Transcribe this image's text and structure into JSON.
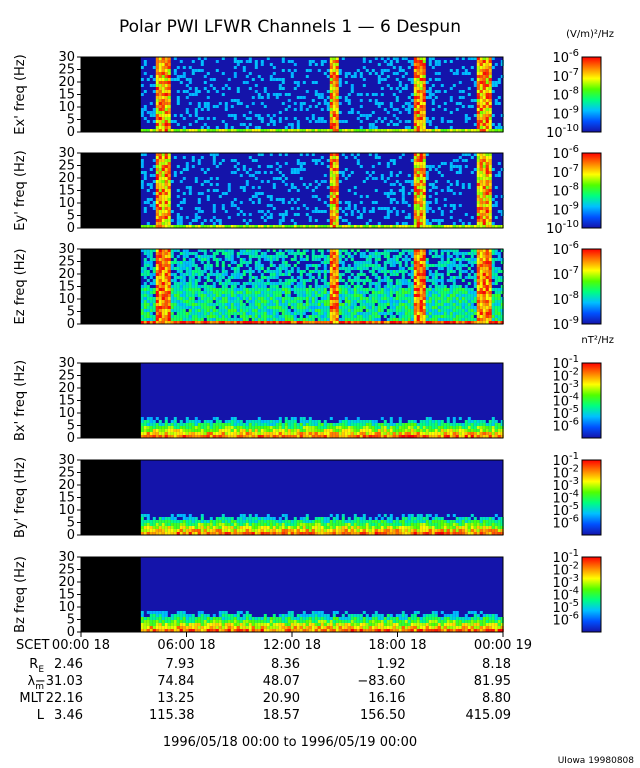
{
  "title": "Polar PWI LFWR Channels 1 — 6 Despun",
  "date_range": "1996/05/18 00:00 to 1996/05/19 00:00",
  "credit": "UIowa 19980808",
  "colors": {
    "background": "#ffffff",
    "no_data": "#000000",
    "colormap": [
      "#1414aa",
      "#0050ff",
      "#00c0ff",
      "#00ff80",
      "#50ff00",
      "#ffff00",
      "#ff8000",
      "#ff0000"
    ]
  },
  "chart_data": {
    "type": "heatmap",
    "instrument": "Polar PWI LFWR",
    "time_axis": {
      "label": "SCET",
      "range_hours": [
        0,
        24
      ],
      "no_data_until_hour": 3.4,
      "tick_hours": [
        0,
        6,
        12,
        18,
        24
      ],
      "tick_labels": [
        "00:00 18",
        "06:00 18",
        "12:00 18",
        "18:00 18",
        "00:00 19"
      ]
    },
    "freq_axis": {
      "range_hz": [
        0,
        30
      ],
      "tick_values": [
        0,
        5,
        10,
        15,
        20,
        25,
        30
      ],
      "tick_labels": [
        "0",
        "5",
        "10",
        "15",
        "20",
        "25",
        "30"
      ]
    },
    "color_scale": "log",
    "panels": [
      {
        "ylabel": "Ex' freq (Hz)",
        "units": "(V/m)²/Hz",
        "cbar_range_exp": [
          -10,
          -6
        ],
        "cbar_labels": [
          {
            "base": "10",
            "exp": "-6"
          },
          {
            "base": "10",
            "exp": "-7"
          },
          {
            "base": "10",
            "exp": "-8"
          },
          {
            "base": "10",
            "exp": "-9"
          },
          {
            "base": "10",
            "exp": "-10"
          }
        ],
        "bursts": [
          [
            4.2,
            5.0
          ],
          [
            14.1,
            14.6
          ],
          [
            18.8,
            19.6
          ],
          [
            22.5,
            23.3
          ]
        ]
      },
      {
        "ylabel": "Ey' freq (Hz)",
        "units": "",
        "cbar_range_exp": [
          -10,
          -6
        ],
        "cbar_labels": [
          {
            "base": "10",
            "exp": "-6"
          },
          {
            "base": "10",
            "exp": "-7"
          },
          {
            "base": "10",
            "exp": "-8"
          },
          {
            "base": "10",
            "exp": "-9"
          },
          {
            "base": "10",
            "exp": "-10"
          }
        ],
        "bursts": [
          [
            4.2,
            5.0
          ],
          [
            14.1,
            14.6
          ],
          [
            18.8,
            19.6
          ],
          [
            22.5,
            23.3
          ]
        ]
      },
      {
        "ylabel": "Ez freq (Hz)",
        "units": "",
        "cbar_range_exp": [
          -9,
          -6
        ],
        "cbar_labels": [
          {
            "base": "10",
            "exp": "-6"
          },
          {
            "base": "10",
            "exp": "-7"
          },
          {
            "base": "10",
            "exp": "-8"
          },
          {
            "base": "10",
            "exp": "-9"
          }
        ],
        "bursts": [
          [
            4.2,
            5.0
          ],
          [
            14.1,
            14.6
          ],
          [
            18.8,
            19.6
          ],
          [
            22.5,
            23.3
          ]
        ]
      },
      {
        "ylabel": "Bx' freq (Hz)",
        "units": "nT²/Hz",
        "cbar_range_exp": [
          -7,
          -1
        ],
        "cbar_labels": [
          {
            "base": "10",
            "exp": "-1"
          },
          {
            "base": "10",
            "exp": "-2"
          },
          {
            "base": "10",
            "exp": "-3"
          },
          {
            "base": "10",
            "exp": "-4"
          },
          {
            "base": "10",
            "exp": "-5"
          },
          {
            "base": "10",
            "exp": "-6"
          }
        ],
        "bursts": []
      },
      {
        "ylabel": "By' freq (Hz)",
        "units": "",
        "cbar_range_exp": [
          -7,
          -1
        ],
        "cbar_labels": [
          {
            "base": "10",
            "exp": "-1"
          },
          {
            "base": "10",
            "exp": "-2"
          },
          {
            "base": "10",
            "exp": "-3"
          },
          {
            "base": "10",
            "exp": "-4"
          },
          {
            "base": "10",
            "exp": "-5"
          },
          {
            "base": "10",
            "exp": "-6"
          }
        ],
        "bursts": []
      },
      {
        "ylabel": "Bz freq (Hz)",
        "units": "",
        "cbar_range_exp": [
          -7,
          -1
        ],
        "cbar_labels": [
          {
            "base": "10",
            "exp": "-1"
          },
          {
            "base": "10",
            "exp": "-2"
          },
          {
            "base": "10",
            "exp": "-3"
          },
          {
            "base": "10",
            "exp": "-4"
          },
          {
            "base": "10",
            "exp": "-5"
          },
          {
            "base": "10",
            "exp": "-6"
          }
        ],
        "bursts": []
      }
    ],
    "ephemeris": [
      {
        "label": "R",
        "sub": "E",
        "values": [
          "2.46",
          "7.93",
          "8.36",
          "1.92",
          "8.18"
        ]
      },
      {
        "label": "λ",
        "sub": "m",
        "values": [
          "−31.03",
          "74.84",
          "48.07",
          "−83.60",
          "81.95"
        ]
      },
      {
        "label": "MLT",
        "sub": "",
        "values": [
          "22.16",
          "13.25",
          "20.90",
          "16.16",
          "8.80"
        ]
      },
      {
        "label": "L",
        "sub": "",
        "values": [
          "3.46",
          "115.38",
          "18.57",
          "156.50",
          "415.09"
        ]
      }
    ]
  }
}
